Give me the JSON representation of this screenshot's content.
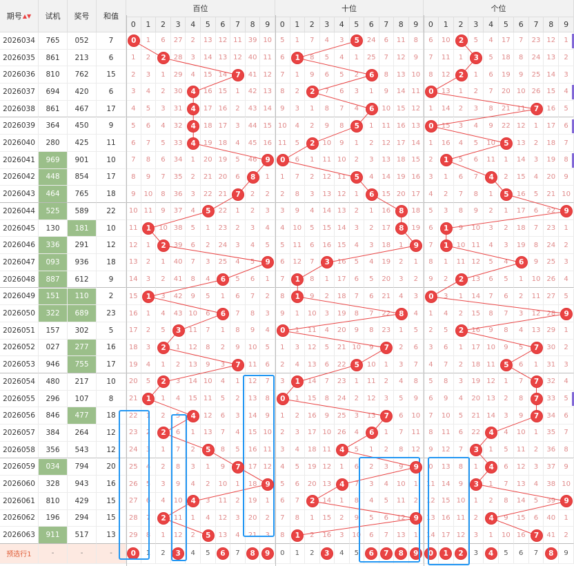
{
  "header": {
    "col_issue": "期号",
    "sort_icon": "sort-icon",
    "col_test": "试机",
    "col_prize": "奖号",
    "col_sum": "和值",
    "group_hundreds": "百位",
    "group_tens": "十位",
    "group_units": "个位",
    "digits": [
      "0",
      "1",
      "2",
      "3",
      "4",
      "5",
      "6",
      "7",
      "8",
      "9"
    ]
  },
  "rows": [
    {
      "issue": "2026034",
      "test": "765",
      "prize": "052",
      "sum": "7",
      "h": [
        0,
        1,
        6,
        27,
        2,
        13,
        12,
        11,
        39,
        10
      ],
      "t": [
        5,
        1,
        7,
        4,
        3,
        5,
        24,
        6,
        11,
        8
      ],
      "u": [
        6,
        10,
        2,
        5,
        4,
        17,
        7,
        23,
        12,
        1
      ]
    },
    {
      "issue": "2026035",
      "test": "861",
      "prize": "213",
      "sum": "6",
      "h": [
        1,
        2,
        2,
        28,
        3,
        14,
        13,
        12,
        40,
        11
      ],
      "t": [
        6,
        1,
        8,
        5,
        4,
        1,
        25,
        7,
        12,
        9
      ],
      "u": [
        7,
        11,
        1,
        3,
        5,
        18,
        8,
        24,
        13,
        2
      ]
    },
    {
      "issue": "2026036",
      "test": "810",
      "prize": "762",
      "sum": "15",
      "h": [
        2,
        3,
        1,
        29,
        4,
        15,
        14,
        7,
        41,
        12
      ],
      "t": [
        7,
        1,
        9,
        6,
        5,
        2,
        6,
        8,
        13,
        10
      ],
      "u": [
        8,
        12,
        2,
        1,
        6,
        19,
        9,
        25,
        14,
        3
      ]
    },
    {
      "issue": "2026037",
      "test": "694",
      "prize": "420",
      "sum": "6",
      "h": [
        3,
        4,
        2,
        30,
        4,
        16,
        15,
        1,
        42,
        13
      ],
      "t": [
        8,
        2,
        2,
        7,
        6,
        3,
        1,
        9,
        14,
        11
      ],
      "u": [
        0,
        13,
        1,
        2,
        7,
        20,
        10,
        26,
        15,
        4
      ]
    },
    {
      "issue": "2026038",
      "test": "861",
      "prize": "467",
      "sum": "17",
      "h": [
        4,
        5,
        3,
        31,
        4,
        17,
        16,
        2,
        43,
        14
      ],
      "t": [
        9,
        3,
        1,
        8,
        7,
        4,
        6,
        10,
        15,
        12
      ],
      "u": [
        1,
        14,
        2,
        3,
        8,
        21,
        11,
        7,
        16,
        5
      ]
    },
    {
      "issue": "2026039",
      "test": "364",
      "prize": "450",
      "sum": "9",
      "h": [
        5,
        6,
        4,
        32,
        4,
        18,
        17,
        3,
        44,
        15
      ],
      "t": [
        10,
        4,
        2,
        9,
        8,
        5,
        1,
        11,
        16,
        13
      ],
      "u": [
        0,
        15,
        3,
        4,
        9,
        22,
        12,
        1,
        17,
        6
      ]
    },
    {
      "issue": "2026040",
      "test": "280",
      "prize": "425",
      "sum": "11",
      "h": [
        6,
        7,
        5,
        33,
        4,
        19,
        18,
        4,
        45,
        16
      ],
      "t": [
        11,
        5,
        2,
        10,
        9,
        1,
        2,
        12,
        17,
        14
      ],
      "u": [
        1,
        16,
        4,
        5,
        10,
        5,
        13,
        2,
        18,
        7
      ]
    },
    {
      "issue": "2026041",
      "test": "969",
      "prize": "901",
      "sum": "10",
      "h": [
        7,
        8,
        6,
        34,
        1,
        20,
        19,
        5,
        46,
        9
      ],
      "t": [
        0,
        6,
        1,
        11,
        10,
        2,
        3,
        13,
        18,
        15
      ],
      "u": [
        2,
        1,
        5,
        6,
        11,
        1,
        14,
        3,
        19,
        8
      ]
    },
    {
      "issue": "2026042",
      "test": "448",
      "prize": "854",
      "sum": "17",
      "h": [
        8,
        9,
        7,
        35,
        2,
        21,
        20,
        6,
        8,
        1
      ],
      "t": [
        1,
        7,
        2,
        12,
        11,
        5,
        4,
        14,
        19,
        16
      ],
      "u": [
        3,
        1,
        6,
        7,
        4,
        2,
        15,
        4,
        20,
        9
      ]
    },
    {
      "issue": "2026043",
      "test": "464",
      "prize": "765",
      "sum": "18",
      "h": [
        9,
        10,
        8,
        36,
        3,
        22,
        21,
        7,
        2,
        2
      ],
      "t": [
        2,
        8,
        3,
        13,
        12,
        1,
        6,
        15,
        20,
        17
      ],
      "u": [
        4,
        2,
        7,
        8,
        1,
        5,
        16,
        5,
        21,
        10
      ]
    },
    {
      "issue": "2026044",
      "test": "525",
      "prize": "589",
      "sum": "22",
      "h": [
        10,
        11,
        9,
        37,
        4,
        5,
        22,
        1,
        2,
        3
      ],
      "t": [
        3,
        9,
        4,
        14,
        13,
        2,
        1,
        16,
        8,
        18
      ],
      "u": [
        5,
        3,
        8,
        9,
        2,
        1,
        17,
        6,
        22,
        9
      ]
    },
    {
      "issue": "2026045",
      "test": "130",
      "prize": "181",
      "sum": "10",
      "h": [
        11,
        1,
        10,
        38,
        5,
        1,
        23,
        2,
        3,
        4
      ],
      "t": [
        4,
        10,
        5,
        15,
        14,
        3,
        2,
        17,
        8,
        19
      ],
      "u": [
        6,
        1,
        9,
        10,
        3,
        2,
        18,
        7,
        23,
        1
      ]
    },
    {
      "issue": "2026046",
      "test": "336",
      "prize": "291",
      "sum": "12",
      "h": [
        12,
        1,
        2,
        39,
        6,
        2,
        24,
        3,
        4,
        5
      ],
      "t": [
        5,
        11,
        6,
        16,
        15,
        4,
        3,
        18,
        1,
        9
      ],
      "u": [
        7,
        1,
        10,
        11,
        4,
        3,
        19,
        8,
        24,
        2
      ]
    },
    {
      "issue": "2026047",
      "test": "093",
      "prize": "936",
      "sum": "18",
      "h": [
        13,
        2,
        1,
        40,
        7,
        3,
        25,
        4,
        5,
        9
      ],
      "t": [
        6,
        12,
        7,
        3,
        16,
        5,
        4,
        19,
        2,
        1
      ],
      "u": [
        8,
        1,
        11,
        12,
        5,
        4,
        6,
        9,
        25,
        3
      ]
    },
    {
      "issue": "2026048",
      "test": "887",
      "prize": "612",
      "sum": "9",
      "h": [
        14,
        3,
        2,
        41,
        8,
        4,
        6,
        5,
        6,
        1
      ],
      "t": [
        7,
        1,
        8,
        1,
        17,
        6,
        5,
        20,
        3,
        2
      ],
      "u": [
        9,
        2,
        2,
        13,
        6,
        5,
        1,
        10,
        26,
        4
      ]
    },
    {
      "issue": "2026049",
      "test": "151",
      "prize": "110",
      "sum": "2",
      "h": [
        15,
        1,
        3,
        42,
        9,
        5,
        1,
        6,
        7,
        2
      ],
      "t": [
        8,
        1,
        9,
        2,
        18,
        7,
        6,
        21,
        4,
        3
      ],
      "u": [
        0,
        3,
        1,
        14,
        7,
        6,
        2,
        11,
        27,
        5
      ]
    },
    {
      "issue": "2026050",
      "test": "322",
      "prize": "689",
      "sum": "23",
      "h": [
        16,
        1,
        4,
        43,
        10,
        6,
        6,
        7,
        8,
        3
      ],
      "t": [
        9,
        1,
        10,
        3,
        19,
        8,
        7,
        22,
        8,
        4
      ],
      "u": [
        1,
        4,
        2,
        15,
        8,
        7,
        3,
        12,
        28,
        9
      ]
    },
    {
      "issue": "2026051",
      "test": "157",
      "prize": "302",
      "sum": "5",
      "h": [
        17,
        2,
        5,
        3,
        11,
        7,
        1,
        8,
        9,
        4
      ],
      "t": [
        0,
        1,
        11,
        4,
        20,
        9,
        8,
        23,
        1,
        5
      ],
      "u": [
        2,
        5,
        2,
        16,
        9,
        8,
        4,
        13,
        29,
        1
      ]
    },
    {
      "issue": "2026052",
      "test": "027",
      "prize": "277",
      "sum": "16",
      "h": [
        18,
        3,
        2,
        1,
        12,
        8,
        2,
        9,
        10,
        5
      ],
      "t": [
        1,
        3,
        12,
        5,
        21,
        10,
        9,
        7,
        2,
        6
      ],
      "u": [
        3,
        6,
        1,
        17,
        10,
        9,
        5,
        7,
        30,
        2
      ]
    },
    {
      "issue": "2026053",
      "test": "946",
      "prize": "755",
      "sum": "17",
      "h": [
        19,
        4,
        1,
        2,
        13,
        9,
        3,
        7,
        11,
        6
      ],
      "t": [
        2,
        4,
        13,
        6,
        22,
        5,
        10,
        1,
        3,
        7
      ],
      "u": [
        4,
        7,
        2,
        18,
        11,
        5,
        6,
        1,
        31,
        3
      ]
    },
    {
      "issue": "2026054",
      "test": "480",
      "prize": "217",
      "sum": "10",
      "h": [
        20,
        5,
        2,
        3,
        14,
        10,
        4,
        1,
        12,
        7
      ],
      "t": [
        3,
        1,
        14,
        7,
        23,
        1,
        11,
        2,
        4,
        8
      ],
      "u": [
        5,
        8,
        3,
        19,
        12,
        1,
        7,
        7,
        32,
        4
      ]
    },
    {
      "issue": "2026055",
      "test": "296",
      "prize": "107",
      "sum": "8",
      "h": [
        21,
        1,
        1,
        4,
        15,
        11,
        5,
        2,
        13,
        8
      ],
      "t": [
        0,
        1,
        15,
        8,
        24,
        2,
        12,
        3,
        5,
        9
      ],
      "u": [
        6,
        9,
        4,
        20,
        13,
        2,
        8,
        7,
        33,
        5
      ]
    },
    {
      "issue": "2026056",
      "test": "846",
      "prize": "477",
      "sum": "18",
      "h": [
        22,
        1,
        2,
        5,
        4,
        12,
        6,
        3,
        14,
        9
      ],
      "t": [
        1,
        2,
        16,
        9,
        25,
        3,
        13,
        7,
        6,
        10
      ],
      "u": [
        7,
        10,
        5,
        21,
        14,
        3,
        9,
        7,
        34,
        6
      ]
    },
    {
      "issue": "2026057",
      "test": "384",
      "prize": "264",
      "sum": "12",
      "h": [
        23,
        2,
        2,
        6,
        1,
        13,
        7,
        4,
        15,
        10
      ],
      "t": [
        2,
        3,
        17,
        10,
        26,
        4,
        6,
        1,
        7,
        11
      ],
      "u": [
        8,
        11,
        6,
        22,
        4,
        4,
        10,
        1,
        35,
        7
      ]
    },
    {
      "issue": "2026058",
      "test": "356",
      "prize": "543",
      "sum": "12",
      "h": [
        24,
        3,
        1,
        7,
        2,
        5,
        8,
        5,
        16,
        11
      ],
      "t": [
        3,
        4,
        18,
        11,
        4,
        5,
        1,
        2,
        8,
        12
      ],
      "u": [
        9,
        12,
        7,
        3,
        1,
        5,
        11,
        2,
        36,
        8
      ]
    },
    {
      "issue": "2026059",
      "test": "034",
      "prize": "794",
      "sum": "20",
      "h": [
        25,
        4,
        2,
        8,
        3,
        1,
        9,
        7,
        17,
        12
      ],
      "t": [
        4,
        5,
        19,
        12,
        1,
        6,
        2,
        3,
        9,
        9
      ],
      "u": [
        0,
        13,
        8,
        1,
        4,
        6,
        12,
        3,
        37,
        9
      ]
    },
    {
      "issue": "2026060",
      "test": "328",
      "prize": "943",
      "sum": "16",
      "h": [
        26,
        5,
        3,
        9,
        4,
        2,
        10,
        1,
        18,
        9
      ],
      "t": [
        5,
        6,
        20,
        13,
        4,
        7,
        3,
        4,
        10,
        1
      ],
      "u": [
        11,
        14,
        9,
        3,
        1,
        7,
        13,
        4,
        38,
        10
      ]
    },
    {
      "issue": "2026061",
      "test": "810",
      "prize": "429",
      "sum": "15",
      "h": [
        27,
        6,
        4,
        10,
        4,
        3,
        11,
        2,
        19,
        1
      ],
      "t": [
        6,
        7,
        2,
        14,
        1,
        8,
        4,
        5,
        11,
        2
      ],
      "u": [
        12,
        15,
        10,
        1,
        2,
        8,
        14,
        5,
        39,
        9
      ]
    },
    {
      "issue": "2026062",
      "test": "196",
      "prize": "294",
      "sum": "15",
      "h": [
        28,
        7,
        2,
        11,
        1,
        4,
        12,
        3,
        20,
        2
      ],
      "t": [
        7,
        8,
        1,
        15,
        2,
        9,
        5,
        6,
        12,
        9
      ],
      "u": [
        13,
        16,
        11,
        2,
        4,
        9,
        15,
        6,
        40,
        1
      ]
    },
    {
      "issue": "2026063",
      "test": "911",
      "prize": "517",
      "sum": "13",
      "h": [
        29,
        8,
        1,
        12,
        2,
        5,
        13,
        4,
        21,
        3
      ],
      "t": [
        8,
        1,
        2,
        16,
        3,
        10,
        6,
        7,
        13,
        1
      ],
      "u": [
        14,
        17,
        12,
        3,
        1,
        10,
        16,
        7,
        41,
        2
      ]
    }
  ],
  "balls": {
    "h": [
      0,
      2,
      7,
      4,
      4,
      4,
      4,
      9,
      8,
      7,
      5,
      1,
      2,
      9,
      6,
      1,
      6,
      3,
      2,
      7,
      2,
      1,
      4,
      2,
      5,
      7,
      9,
      4,
      2,
      5
    ],
    "t": [
      5,
      1,
      6,
      2,
      6,
      5,
      2,
      0,
      5,
      6,
      8,
      8,
      9,
      3,
      1,
      1,
      8,
      0,
      7,
      5,
      1,
      0,
      7,
      6,
      4,
      9,
      4,
      2,
      9,
      1
    ],
    "u": [
      2,
      3,
      2,
      0,
      7,
      0,
      5,
      1,
      4,
      5,
      9,
      1,
      1,
      6,
      2,
      0,
      9,
      2,
      7,
      5,
      7,
      7,
      7,
      4,
      3,
      4,
      3,
      9,
      4,
      7
    ]
  },
  "highlight_test_rows": [
    7,
    8,
    9,
    10,
    12,
    13,
    14,
    15,
    16,
    25,
    29
  ],
  "highlight_prize_rows": [
    11,
    15,
    16,
    18,
    19,
    22
  ],
  "prediction": {
    "label": "预选行1",
    "dash": "-",
    "h": [
      [
        "0",
        1
      ],
      [
        "1",
        0
      ],
      [
        "2",
        0
      ],
      [
        "3",
        1
      ],
      [
        "4",
        0
      ],
      [
        "5",
        0
      ],
      [
        "6",
        1
      ],
      [
        "7",
        0
      ],
      [
        "8",
        1
      ],
      [
        "9",
        1
      ]
    ],
    "t": [
      [
        "0",
        0
      ],
      [
        "1",
        0
      ],
      [
        "2",
        0
      ],
      [
        "3",
        1
      ],
      [
        "4",
        0
      ],
      [
        "5",
        0
      ],
      [
        "6",
        1
      ],
      [
        "7",
        1
      ],
      [
        "8",
        1
      ],
      [
        "9",
        1
      ]
    ],
    "u": [
      [
        "0",
        1
      ],
      [
        "1",
        1
      ],
      [
        "2",
        1
      ],
      [
        "3",
        0
      ],
      [
        "4",
        1
      ],
      [
        "5",
        0
      ],
      [
        "6",
        0
      ],
      [
        "7",
        0
      ],
      [
        "8",
        1
      ],
      [
        "9",
        0
      ]
    ]
  },
  "colors": {
    "ball": "#e94343",
    "line": "#e94343",
    "box": "#2196f3",
    "highlight": "#9bbf8a",
    "pred_bg": "#fde9e1",
    "mark": "#8066d6"
  },
  "marks": [
    0,
    3,
    5,
    7,
    21
  ]
}
